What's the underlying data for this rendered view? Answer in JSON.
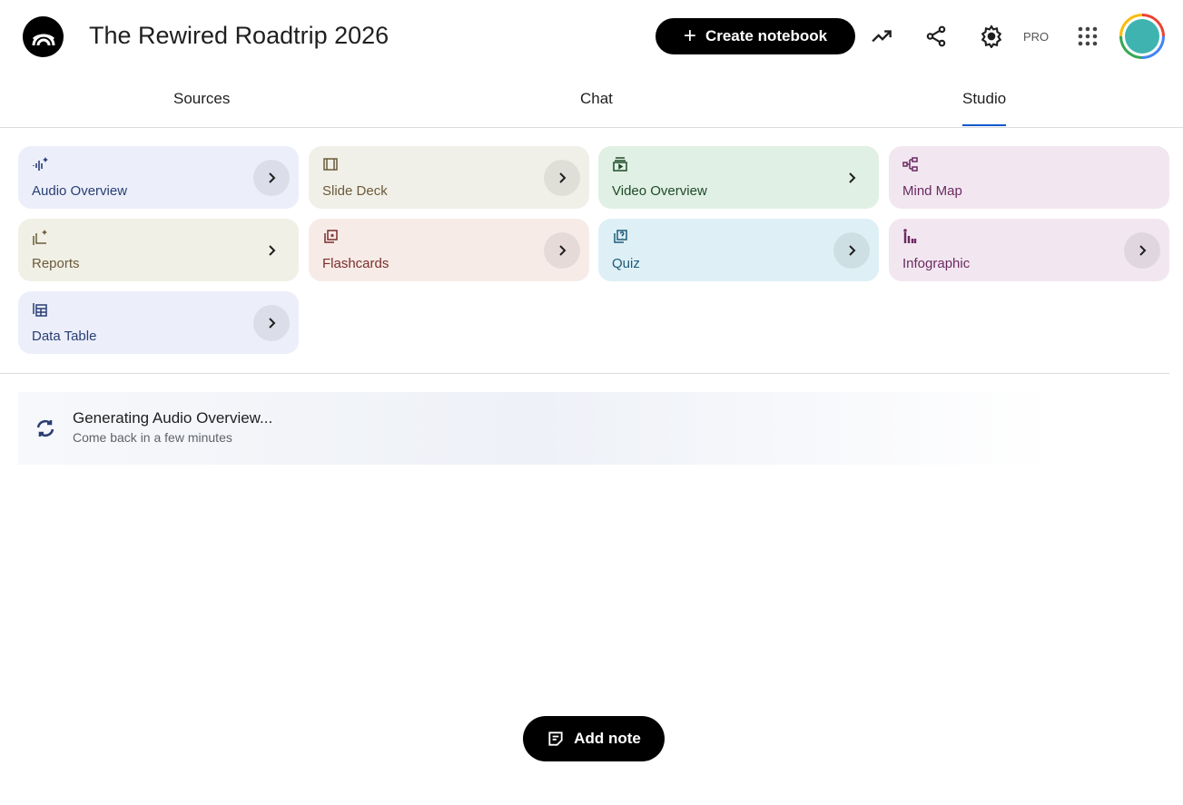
{
  "header": {
    "title": "The Rewired Roadtrip 2026",
    "create_label": "Create notebook",
    "pro_label": "PRO",
    "icons": [
      "notebooklm-logo-icon",
      "analytics-trend-icon",
      "share-icon",
      "settings-gear-icon",
      "apps-grid-icon",
      "avatar"
    ]
  },
  "tabs": [
    {
      "label": "Sources"
    },
    {
      "label": "Chat"
    },
    {
      "label": "Studio",
      "active": true
    }
  ],
  "studio": {
    "tools": [
      {
        "label": "Audio Overview",
        "icon": "audio-waveform-sparkle-icon",
        "bg": "#eceffa",
        "fg": "#2a3e74",
        "chevron": "circle"
      },
      {
        "label": "Slide Deck",
        "icon": "slides-icon",
        "bg": "#f1f0e8",
        "fg": "#6b5a3a",
        "chevron": "circle"
      },
      {
        "label": "Video Overview",
        "icon": "video-icon",
        "bg": "#e1f0e4",
        "fg": "#1f4a2a",
        "chevron": "plain"
      },
      {
        "label": "Mind Map",
        "icon": "mind-map-icon",
        "bg": "#f2e7f0",
        "fg": "#6b2a62",
        "chevron": "none"
      },
      {
        "label": "Reports",
        "icon": "reports-sparkle-icon",
        "bg": "#f1f0e6",
        "fg": "#6b5a3a",
        "chevron": "plain"
      },
      {
        "label": "Flashcards",
        "icon": "flashcards-icon",
        "bg": "#f7ebe8",
        "fg": "#7a2e2a",
        "chevron": "circle"
      },
      {
        "label": "Quiz",
        "icon": "quiz-icon",
        "bg": "#def0f6",
        "fg": "#1e5a78",
        "chevron": "circle"
      },
      {
        "label": "Infographic",
        "icon": "infographic-icon",
        "bg": "#f2e7f0",
        "fg": "#6b2a62",
        "chevron": "circle"
      },
      {
        "label": "Data Table",
        "icon": "data-table-icon",
        "bg": "#eceffa",
        "fg": "#2a3e74",
        "chevron": "circle"
      }
    ]
  },
  "generating": {
    "title": "Generating Audio Overview...",
    "subtitle": "Come back in a few minutes",
    "icon_color": "#2a3e74"
  },
  "add_note": {
    "label": "Add note"
  }
}
